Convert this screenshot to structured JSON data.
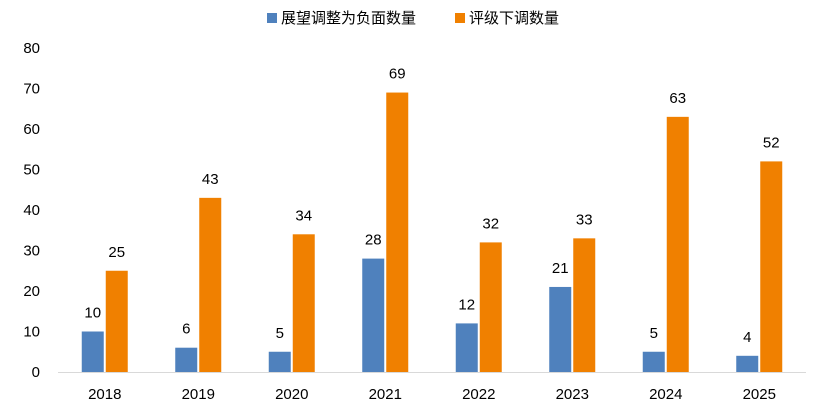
{
  "chart_data": {
    "type": "bar",
    "categories": [
      "2018",
      "2019",
      "2020",
      "2021",
      "2022",
      "2023",
      "2024",
      "2025"
    ],
    "series": [
      {
        "name": "展望调整为负面数量",
        "color": "#4f81bd",
        "values": [
          10,
          6,
          5,
          28,
          12,
          21,
          5,
          4
        ]
      },
      {
        "name": "评级下调数量",
        "color": "#f08000",
        "values": [
          25,
          43,
          34,
          69,
          32,
          33,
          63,
          52
        ]
      }
    ],
    "ylim": [
      0,
      80
    ],
    "yticks": [
      0,
      10,
      20,
      30,
      40,
      50,
      60,
      70,
      80
    ],
    "grid": false,
    "legend_position": "top-center",
    "data_labels": true
  }
}
